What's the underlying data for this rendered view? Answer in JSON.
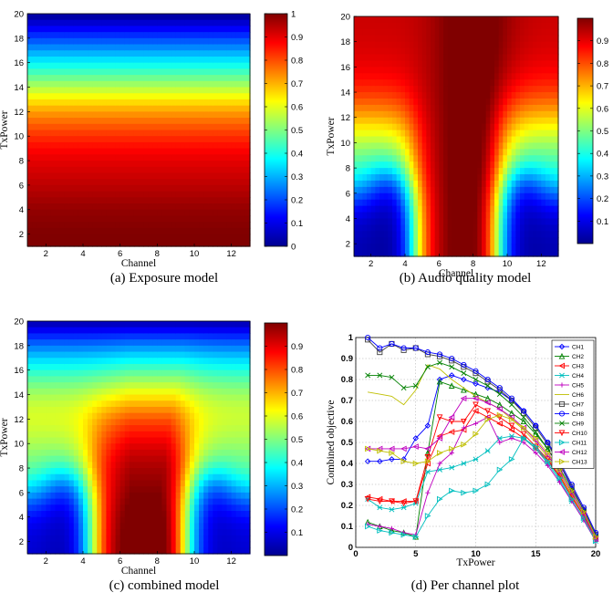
{
  "captions": {
    "a": "(a) Exposure model",
    "b": "(b) Audio quality model",
    "c": "(c) combined model",
    "d": "(d) Per channel plot"
  },
  "chart_data": [
    {
      "id": "a",
      "type": "heatmap",
      "xlabel": "Channel",
      "ylabel": "TxPower",
      "xticks": [
        2,
        4,
        6,
        8,
        10,
        12
      ],
      "yticks": [
        2,
        4,
        6,
        8,
        10,
        12,
        14,
        16,
        18,
        20
      ],
      "xlim": [
        1,
        13
      ],
      "ylim": [
        1,
        20
      ],
      "colorbar_ticks": [
        0,
        0.1,
        0.2,
        0.3,
        0.4,
        0.5,
        0.6,
        0.7,
        0.8,
        0.9,
        1
      ],
      "colorbar_range": [
        0,
        1
      ],
      "rows_by_txpower": [
        1.0,
        1.0,
        0.99,
        0.98,
        0.96,
        0.94,
        0.92,
        0.9,
        0.87,
        0.83,
        0.78,
        0.72,
        0.64,
        0.55,
        0.46,
        0.37,
        0.28,
        0.19,
        0.1,
        0.02
      ]
    },
    {
      "id": "b",
      "type": "heatmap",
      "xlabel": "Channel",
      "ylabel": "TxPower",
      "xticks": [
        2,
        4,
        6,
        8,
        10,
        12
      ],
      "yticks": [
        2,
        4,
        6,
        8,
        10,
        12,
        14,
        16,
        18,
        20
      ],
      "xlim": [
        1,
        13
      ],
      "ylim": [
        1,
        20
      ],
      "colorbar_ticks": [
        0.1,
        0.2,
        0.3,
        0.4,
        0.5,
        0.6,
        0.7,
        0.8,
        0.9
      ],
      "colorbar_range": [
        0,
        1
      ]
    },
    {
      "id": "c",
      "type": "heatmap",
      "xlabel": "Channel",
      "ylabel": "TxPower",
      "xticks": [
        2,
        4,
        6,
        8,
        10,
        12
      ],
      "yticks": [
        2,
        4,
        6,
        8,
        10,
        12,
        14,
        16,
        18,
        20
      ],
      "xlim": [
        1,
        13
      ],
      "ylim": [
        1,
        20
      ],
      "colorbar_ticks": [
        0.1,
        0.2,
        0.3,
        0.4,
        0.5,
        0.6,
        0.7,
        0.8,
        0.9
      ],
      "colorbar_range": [
        0,
        1
      ]
    },
    {
      "id": "d",
      "type": "line",
      "xlabel": "TxPower",
      "ylabel": "Combined objective",
      "xticks": [
        0,
        5,
        10,
        15,
        20
      ],
      "yticks": [
        0,
        0.1,
        0.2,
        0.3,
        0.4,
        0.5,
        0.6,
        0.7,
        0.8,
        0.9,
        1
      ],
      "xlim": [
        0,
        20
      ],
      "ylim": [
        0,
        1
      ],
      "grid": true,
      "legend": "top-right",
      "x": [
        1,
        2,
        3,
        4,
        5,
        6,
        7,
        8,
        9,
        10,
        11,
        12,
        13,
        14,
        15,
        16,
        17,
        18,
        19,
        20
      ],
      "series": [
        {
          "name": "CH1",
          "color": "#0000ff",
          "marker": "diamond",
          "values": [
            0.41,
            0.41,
            0.42,
            0.42,
            0.52,
            0.58,
            0.8,
            0.82,
            0.8,
            0.78,
            0.76,
            0.74,
            0.7,
            0.65,
            0.58,
            0.5,
            0.4,
            0.28,
            0.18,
            0.06
          ]
        },
        {
          "name": "CH2",
          "color": "#008000",
          "marker": "triangle-up",
          "values": [
            0.12,
            0.1,
            0.08,
            0.07,
            0.05,
            0.45,
            0.79,
            0.77,
            0.75,
            0.73,
            0.71,
            0.68,
            0.64,
            0.6,
            0.54,
            0.47,
            0.38,
            0.27,
            0.17,
            0.05
          ]
        },
        {
          "name": "CH3",
          "color": "#ff0000",
          "marker": "triangle-left",
          "values": [
            0.24,
            0.23,
            0.22,
            0.22,
            0.22,
            0.4,
            0.53,
            0.55,
            0.56,
            0.65,
            0.62,
            0.59,
            0.56,
            0.52,
            0.47,
            0.41,
            0.34,
            0.24,
            0.15,
            0.04
          ]
        },
        {
          "name": "CH4",
          "color": "#00bfbf",
          "marker": "star",
          "values": [
            0.23,
            0.19,
            0.18,
            0.19,
            0.21,
            0.36,
            0.37,
            0.38,
            0.4,
            0.42,
            0.46,
            0.52,
            0.53,
            0.52,
            0.47,
            0.4,
            0.32,
            0.22,
            0.13,
            0.03
          ]
        },
        {
          "name": "CH5",
          "color": "#bf00bf",
          "marker": "plus",
          "values": [
            0.11,
            0.1,
            0.09,
            0.07,
            0.06,
            0.26,
            0.4,
            0.45,
            0.57,
            0.59,
            0.62,
            0.5,
            0.52,
            0.5,
            0.45,
            0.39,
            0.31,
            0.22,
            0.13,
            0.03
          ]
        },
        {
          "name": "CH6",
          "color": "#bfbf00",
          "marker": "none",
          "values": [
            0.74,
            0.73,
            0.72,
            0.68,
            0.75,
            0.87,
            0.85,
            0.8,
            0.76,
            0.72,
            0.69,
            0.66,
            0.61,
            0.56,
            0.5,
            0.43,
            0.35,
            0.25,
            0.15,
            0.04
          ]
        },
        {
          "name": "CH7",
          "color": "#404040",
          "marker": "square",
          "values": [
            0.99,
            0.93,
            0.97,
            0.94,
            0.95,
            0.92,
            0.91,
            0.89,
            0.86,
            0.83,
            0.79,
            0.75,
            0.7,
            0.64,
            0.57,
            0.49,
            0.4,
            0.29,
            0.18,
            0.06
          ]
        },
        {
          "name": "CH8",
          "color": "#0000ff",
          "marker": "circle",
          "values": [
            1.0,
            0.95,
            0.97,
            0.95,
            0.95,
            0.93,
            0.92,
            0.9,
            0.87,
            0.84,
            0.8,
            0.76,
            0.71,
            0.65,
            0.58,
            0.5,
            0.41,
            0.3,
            0.19,
            0.07
          ]
        },
        {
          "name": "CH9",
          "color": "#008000",
          "marker": "x",
          "values": [
            0.82,
            0.82,
            0.81,
            0.76,
            0.77,
            0.86,
            0.88,
            0.86,
            0.83,
            0.8,
            0.77,
            0.73,
            0.68,
            0.62,
            0.55,
            0.47,
            0.38,
            0.27,
            0.17,
            0.05
          ]
        },
        {
          "name": "CH10",
          "color": "#ff0000",
          "marker": "triangle-down",
          "values": [
            0.23,
            0.22,
            0.22,
            0.21,
            0.22,
            0.43,
            0.62,
            0.6,
            0.6,
            0.68,
            0.65,
            0.62,
            0.58,
            0.54,
            0.48,
            0.42,
            0.34,
            0.24,
            0.15,
            0.04
          ]
        },
        {
          "name": "CH11",
          "color": "#00bfbf",
          "marker": "triangle-right",
          "values": [
            0.1,
            0.08,
            0.07,
            0.06,
            0.05,
            0.15,
            0.23,
            0.27,
            0.26,
            0.27,
            0.3,
            0.37,
            0.42,
            0.52,
            0.48,
            0.41,
            0.33,
            0.23,
            0.14,
            0.03
          ]
        },
        {
          "name": "CH12",
          "color": "#bf00bf",
          "marker": "triangle-left",
          "values": [
            0.47,
            0.47,
            0.47,
            0.47,
            0.48,
            0.47,
            0.52,
            0.62,
            0.71,
            0.71,
            0.69,
            0.66,
            0.62,
            0.57,
            0.51,
            0.44,
            0.36,
            0.26,
            0.16,
            0.04
          ]
        },
        {
          "name": "CH13",
          "color": "#bfbf00",
          "marker": "triangle-right",
          "values": [
            0.47,
            0.46,
            0.45,
            0.41,
            0.4,
            0.41,
            0.45,
            0.47,
            0.49,
            0.54,
            0.61,
            0.63,
            0.61,
            0.57,
            0.52,
            0.45,
            0.37,
            0.27,
            0.17,
            0.05
          ]
        }
      ]
    }
  ]
}
